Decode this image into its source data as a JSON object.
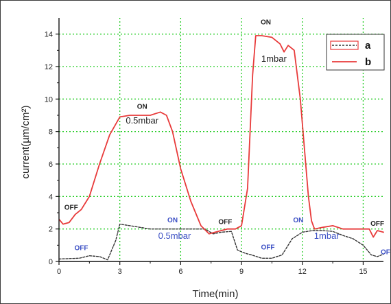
{
  "chart_data": {
    "type": "line",
    "title": "",
    "xlabel": "Time(min)",
    "ylabel": "current(µm/cm²)",
    "xlim": [
      0,
      16
    ],
    "ylim": [
      0,
      15
    ],
    "x_ticks": [
      0,
      3,
      6,
      9,
      12,
      15
    ],
    "y_ticks": [
      0,
      2,
      4,
      6,
      8,
      10,
      12,
      14
    ],
    "grid": "dotted green",
    "legend_position": "top-right",
    "series": [
      {
        "name": "a",
        "style": "dashed",
        "color": "#333333",
        "x": [
          0,
          1.0,
          1.5,
          2.0,
          2.4,
          2.8,
          3.0,
          3.5,
          4.5,
          5.5,
          6.5,
          7.2,
          7.6,
          8.0,
          8.5,
          8.8,
          9.2,
          9.5,
          10.0,
          10.5,
          11.0,
          11.5,
          12.0,
          12.5,
          13.0,
          13.5,
          14.0,
          14.5,
          15.0,
          15.4,
          15.7,
          16.0
        ],
        "y": [
          0.15,
          0.2,
          0.35,
          0.3,
          0.1,
          1.3,
          2.3,
          2.2,
          2.0,
          2.0,
          2.0,
          2.0,
          1.7,
          1.8,
          1.85,
          0.7,
          0.5,
          0.4,
          0.2,
          0.2,
          0.4,
          1.4,
          1.8,
          1.9,
          1.9,
          1.85,
          1.6,
          1.4,
          1.0,
          0.4,
          0.3,
          0.45
        ]
      },
      {
        "name": "b",
        "style": "solid",
        "color": "#e83a3a",
        "x": [
          0,
          0.2,
          0.5,
          0.8,
          1.1,
          1.5,
          2.0,
          2.5,
          3.0,
          3.5,
          4.0,
          4.5,
          5.0,
          5.3,
          5.6,
          6.0,
          6.5,
          7.0,
          7.4,
          7.7,
          8.0,
          8.3,
          8.7,
          9.0,
          9.3,
          9.55,
          9.7,
          10.0,
          10.5,
          10.9,
          11.1,
          11.3,
          11.6,
          11.9,
          12.1,
          12.3,
          12.45,
          12.6,
          13.0,
          13.5,
          14.0,
          14.5,
          15.0,
          15.3,
          15.5,
          15.7,
          16.0
        ],
        "y": [
          2.6,
          2.3,
          2.4,
          2.9,
          3.2,
          4.0,
          6.0,
          7.8,
          8.9,
          9.0,
          9.0,
          9.0,
          9.2,
          9.0,
          8.0,
          5.7,
          3.7,
          2.2,
          1.7,
          1.8,
          1.9,
          2.0,
          2.0,
          2.2,
          4.5,
          11.5,
          13.9,
          13.9,
          13.8,
          13.4,
          12.9,
          13.3,
          13.0,
          10.0,
          7.0,
          4.0,
          2.5,
          2.0,
          2.1,
          2.2,
          2.0,
          2.0,
          2.0,
          2.0,
          1.5,
          1.9,
          1.8
        ]
      }
    ],
    "annotations": [
      {
        "text": "OFF",
        "x": 0.6,
        "y": 3.2,
        "color": "#222222",
        "size": "small"
      },
      {
        "text": "ON",
        "x": 4.1,
        "y": 9.4,
        "color": "#222222",
        "size": "small"
      },
      {
        "text": "0.5mbar",
        "x": 4.1,
        "y": 8.5,
        "color": "#222222",
        "size": "medium"
      },
      {
        "text": "OFF",
        "x": 8.2,
        "y": 2.3,
        "color": "#222222",
        "size": "small"
      },
      {
        "text": "ON",
        "x": 10.2,
        "y": 14.6,
        "color": "#222222",
        "size": "small"
      },
      {
        "text": "1mbar",
        "x": 10.6,
        "y": 12.3,
        "color": "#222222",
        "size": "medium"
      },
      {
        "text": "OFF",
        "x": 15.7,
        "y": 2.2,
        "color": "#222222",
        "size": "small"
      },
      {
        "text": "OFF",
        "x": 1.1,
        "y": 0.7,
        "color": "#3b4fc4",
        "size": "small"
      },
      {
        "text": "ON",
        "x": 5.6,
        "y": 2.4,
        "color": "#3b4fc4",
        "size": "small"
      },
      {
        "text": "0.5mbar",
        "x": 5.7,
        "y": 1.4,
        "color": "#3b4fc4",
        "size": "medium"
      },
      {
        "text": "OFF",
        "x": 10.3,
        "y": 0.75,
        "color": "#3b4fc4",
        "size": "small"
      },
      {
        "text": "ON",
        "x": 11.8,
        "y": 2.4,
        "color": "#3b4fc4",
        "size": "small"
      },
      {
        "text": "1mbar",
        "x": 13.2,
        "y": 1.4,
        "color": "#3b4fc4",
        "size": "medium"
      },
      {
        "text": "OF",
        "x": 16.1,
        "y": 0.45,
        "color": "#3b4fc4",
        "size": "small"
      }
    ]
  }
}
